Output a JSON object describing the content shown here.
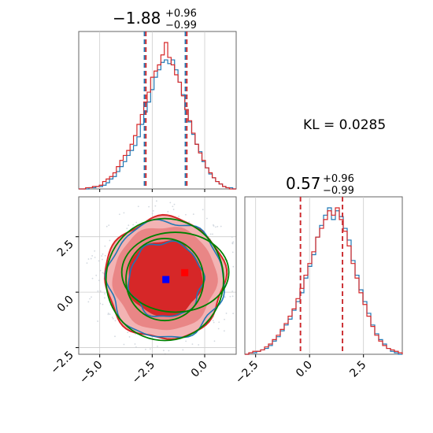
{
  "chart_data": [
    {
      "type": "histogram",
      "panel": "marginal-x",
      "title": {
        "main": "−1.88",
        "sup": "+0.96",
        "sub": "−0.99"
      },
      "xlim": [
        -6.0,
        1.5
      ],
      "x_ticks": [
        -5.0,
        -2.5,
        0.0
      ],
      "series": [
        {
          "color": "#1f77b4",
          "values": [
            0,
            0,
            0,
            1,
            1,
            2,
            2,
            3,
            5,
            8,
            10,
            14,
            18,
            22,
            27,
            31,
            35,
            42,
            52,
            62,
            70,
            80,
            90,
            96,
            102,
            104,
            101,
            104,
            96,
            86,
            76,
            64,
            54,
            44,
            36,
            30,
            22,
            17,
            12,
            9,
            6,
            4,
            2,
            1,
            1,
            0
          ]
        },
        {
          "color": "#d62728",
          "values": [
            0,
            0,
            1,
            1,
            2,
            2,
            3,
            6,
            8,
            10,
            13,
            18,
            23,
            27,
            31,
            36,
            43,
            52,
            60,
            70,
            78,
            90,
            95,
            100,
            108,
            118,
            106,
            100,
            92,
            86,
            75,
            64,
            55,
            45,
            36,
            29,
            23,
            17,
            13,
            9,
            6,
            4,
            2,
            1,
            0,
            0
          ]
        }
      ],
      "quantile_lines": [
        {
          "color": "#1f77b4",
          "values": [
            -2.87,
            -0.92
          ]
        },
        {
          "color": "#d62728",
          "values": [
            -2.8,
            -0.85
          ]
        }
      ]
    },
    {
      "type": "histogram",
      "panel": "marginal-y",
      "title": {
        "main": "0.57",
        "sup": "+0.96",
        "sub": "−0.99"
      },
      "xlim": [
        -3.0,
        4.3
      ],
      "x_ticks": [
        -2.5,
        0.0,
        2.5
      ],
      "series": [
        {
          "color": "#1f77b4",
          "values": [
            0,
            1,
            1,
            2,
            3,
            4,
            6,
            9,
            12,
            16,
            20,
            24,
            30,
            36,
            42,
            52,
            60,
            68,
            80,
            88,
            95,
            100,
            92,
            98,
            94,
            86,
            78,
            64,
            54,
            44,
            36,
            28,
            20,
            14,
            10,
            7,
            4,
            2,
            1,
            0
          ]
        },
        {
          "color": "#d62728",
          "values": [
            0,
            1,
            2,
            2,
            3,
            5,
            7,
            10,
            13,
            17,
            21,
            26,
            31,
            38,
            45,
            54,
            62,
            70,
            80,
            86,
            92,
            98,
            95,
            100,
            92,
            84,
            74,
            62,
            52,
            42,
            34,
            26,
            19,
            13,
            9,
            6,
            4,
            3,
            2,
            1
          ]
        }
      ],
      "quantile_lines": [
        {
          "color": "#1f77b4",
          "values": [
            -0.42,
            1.53
          ]
        },
        {
          "color": "#d62728",
          "values": [
            -0.42,
            1.53
          ]
        }
      ]
    },
    {
      "type": "scatter",
      "panel": "joint-2d",
      "xlim": [
        -6.0,
        1.5
      ],
      "ylim": [
        -2.8,
        4.3
      ],
      "x_ticks": [
        -5.0,
        -2.5,
        0.0
      ],
      "y_ticks": [
        -2.5,
        0.0,
        2.5
      ],
      "markers": [
        {
          "color": "#0000ff",
          "shape": "square",
          "x": -1.85,
          "y": 0.57
        },
        {
          "color": "#ff0000",
          "shape": "square",
          "x": -0.95,
          "y": 0.88
        }
      ],
      "green_ellipses": [
        {
          "cx": -1.9,
          "cy": 0.57,
          "rx": 2.8,
          "ry": 2.75
        },
        {
          "cx": -1.9,
          "cy": 0.57,
          "rx": 1.85,
          "ry": 1.85
        },
        {
          "cx": -1.4,
          "cy": 0.9,
          "rx": 2.55,
          "ry": 1.8
        }
      ]
    }
  ],
  "annotation": {
    "kl": "KL = 0.0285"
  },
  "colors": {
    "blue": "#1f77b4",
    "red": "#d62728",
    "green": "#008000",
    "grid": "#cccccc",
    "axis": "#666666"
  }
}
